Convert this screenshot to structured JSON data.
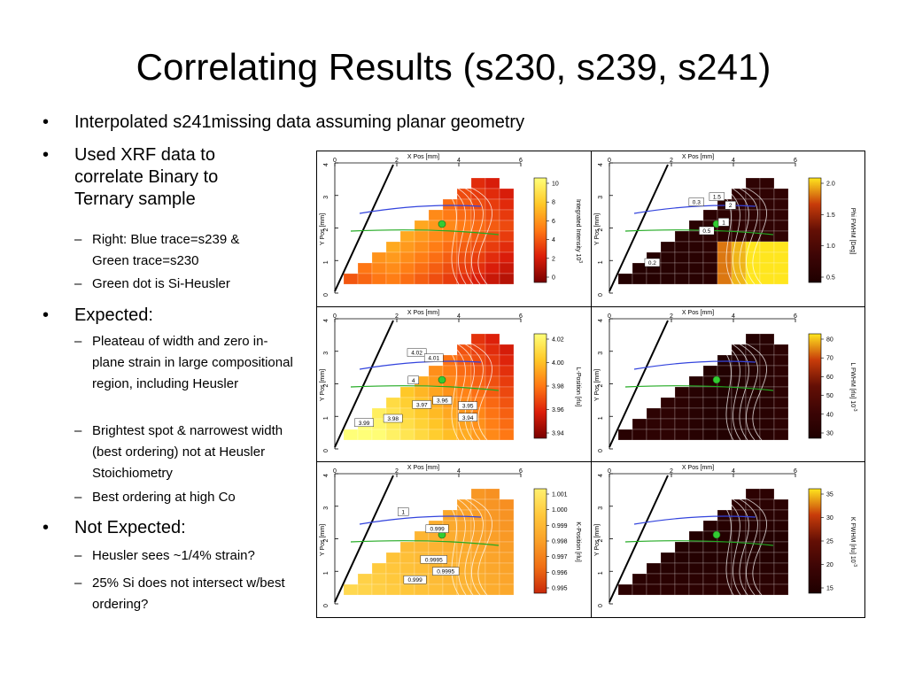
{
  "slide": {
    "title": "Correlating Results (s230, s239, s241)",
    "bullets": [
      {
        "text": "Interpolated s241missing data assuming planar geometry",
        "subs": []
      },
      {
        "text": "Used XRF data to correlate Binary to Ternary sample",
        "subs": [
          "Right: Blue trace=s239 & Green trace=s230",
          "Green dot is Si-Heusler"
        ]
      },
      {
        "text": "Expected:",
        "subs": [
          "Pleateau of width and zero in-plane strain in large compositional region, including Heusler",
          "Brightest spot & narrowest width (best ordering) not at Heusler Stoichiometry",
          "Best ordering at high Co"
        ]
      },
      {
        "text": "Not Expected:",
        "subs": [
          "Heusler sees ~1/4% strain?",
          "25% Si does not intersect w/best ordering?"
        ]
      }
    ]
  },
  "figure": {
    "x_axis_label": "X Pos [mm]",
    "y_axis_label": "Y Pos [mm]",
    "x_ticks": [
      "0",
      "2",
      "4",
      "6"
    ],
    "y_ticks": [
      "0",
      "1",
      "2",
      "3",
      "4"
    ],
    "trace_colors": {
      "s239": "#3344dd",
      "s230": "#22aa22"
    },
    "si_heusler_dot_color": "#33cc33",
    "panels": [
      {
        "id": "intensity",
        "scale_label": "Integrated Intensity 10",
        "scale_exp": "3",
        "scale_ticks": [
          "10",
          "8",
          "6",
          "4",
          "2",
          "0"
        ],
        "palette": "heat",
        "contour_labels": []
      },
      {
        "id": "phi-fwhm",
        "scale_label": "Phi FWHM [Deg]",
        "scale_exp": "",
        "scale_ticks": [
          "2.0",
          "1.5",
          "1.0",
          "0.5"
        ],
        "palette": "dark",
        "contour_labels": [
          "0.3",
          "1.5",
          "2",
          "1",
          "0.5",
          "0.2"
        ]
      },
      {
        "id": "l-position",
        "scale_label": "L-Position [rlu]",
        "scale_exp": "",
        "scale_ticks": [
          "4.02",
          "4.00",
          "3.98",
          "3.96",
          "3.94"
        ],
        "palette": "heat",
        "contour_labels": [
          "4.02",
          "4.01",
          "4",
          "3.96",
          "3.97",
          "3.95",
          "3.98",
          "3.94",
          "3.99"
        ]
      },
      {
        "id": "l-fwhm",
        "scale_label": "L FWHM [rlu] 10",
        "scale_exp": "-3",
        "scale_ticks": [
          "80",
          "70",
          "60",
          "50",
          "40",
          "30"
        ],
        "palette": "dark",
        "contour_labels": []
      },
      {
        "id": "k-position",
        "scale_label": "K-Position [rlu]",
        "scale_exp": "",
        "scale_ticks": [
          "1.001",
          "1.000",
          "0.999",
          "0.998",
          "0.997",
          "0.996",
          "0.995"
        ],
        "palette": "orange",
        "contour_labels": [
          "1",
          "0.999",
          "0.9995",
          "0.9995",
          "0.999"
        ]
      },
      {
        "id": "k-fwhm",
        "scale_label": "K FWHM [rlu] 10",
        "scale_exp": "-3",
        "scale_ticks": [
          "35",
          "30",
          "25",
          "20",
          "15"
        ],
        "palette": "dark",
        "contour_labels": []
      }
    ]
  }
}
